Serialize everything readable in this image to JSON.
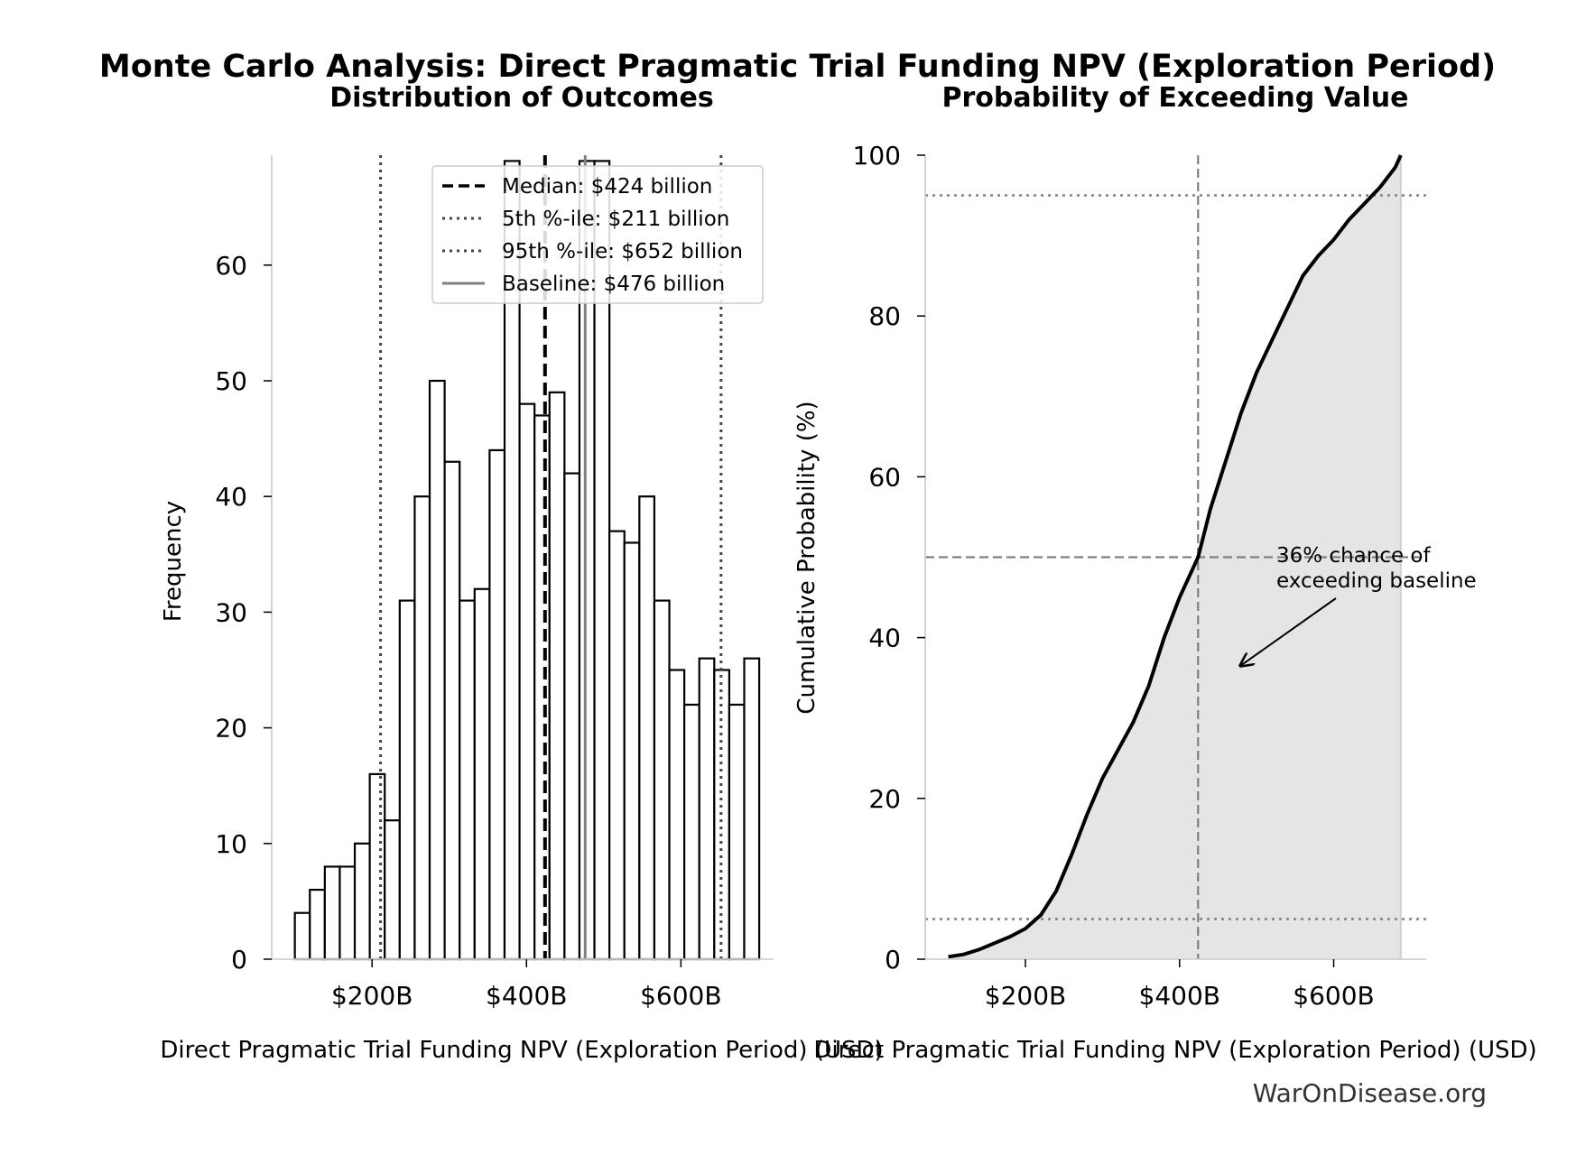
{
  "figure": {
    "title": "Monte Carlo Analysis: Direct Pragmatic Trial Funding NPV (Exploration Period)",
    "watermark": "WarOnDisease.org"
  },
  "chart_data": [
    {
      "type": "bar",
      "title": "Distribution of Outcomes",
      "xlabel": "Direct Pragmatic Trial Funding NPV (Exploration Period) (USD)",
      "ylabel": "Frequency",
      "xlim": [
        70,
        720
      ],
      "ylim": [
        0,
        69.5
      ],
      "x_ticks": [
        200,
        400,
        600
      ],
      "x_tick_labels": [
        "$200B",
        "$400B",
        "$600B"
      ],
      "y_ticks": [
        0,
        10,
        20,
        30,
        40,
        50,
        60
      ],
      "bin_start": 100,
      "bin_width": 19.4,
      "values": [
        4,
        6,
        8,
        8,
        10,
        16,
        12,
        31,
        40,
        50,
        43,
        31,
        32,
        44,
        69,
        48,
        47,
        49,
        42,
        69,
        69,
        37,
        36,
        40,
        31,
        25,
        22,
        26,
        25,
        22,
        26
      ],
      "reference_lines": [
        {
          "label": "Median: $424 billion",
          "x": 424,
          "style": "dashed",
          "color": "#000000"
        },
        {
          "label": "5th %-ile: $211 billion",
          "x": 211,
          "style": "dotted",
          "color": "#444444"
        },
        {
          "label": "95th %-ile: $652 billion",
          "x": 652,
          "style": "dotted",
          "color": "#444444"
        },
        {
          "label": "Baseline: $476 billion",
          "x": 476,
          "style": "solid",
          "color": "#808080"
        }
      ],
      "legend_position": "top-right"
    },
    {
      "type": "area",
      "title": "Probability of Exceeding Value",
      "xlabel": "Direct Pragmatic Trial Funding NPV (Exploration Period) (USD)",
      "ylabel": "Cumulative Probability (%)",
      "xlim": [
        70,
        720
      ],
      "ylim": [
        0,
        100
      ],
      "x_ticks": [
        200,
        400,
        600
      ],
      "x_tick_labels": [
        "$200B",
        "$400B",
        "$600B"
      ],
      "y_ticks": [
        0,
        20,
        40,
        60,
        80,
        100
      ],
      "x": [
        100,
        120,
        140,
        160,
        180,
        200,
        220,
        240,
        260,
        280,
        300,
        320,
        340,
        360,
        380,
        400,
        424,
        440,
        460,
        480,
        500,
        520,
        540,
        560,
        580,
        600,
        620,
        640,
        660,
        680,
        687
      ],
      "y": [
        0.3,
        0.6,
        1.2,
        2.0,
        2.8,
        3.8,
        5.5,
        8.5,
        13,
        18,
        22.5,
        26,
        29.5,
        34,
        40,
        45,
        50,
        56,
        62,
        68,
        73,
        77,
        81,
        85,
        87.5,
        89.5,
        92,
        94,
        96,
        98.5,
        100
      ],
      "hlines": [
        {
          "y": 95,
          "style": "dotted"
        },
        {
          "y": 5,
          "style": "dotted"
        },
        {
          "y": 50,
          "style": "dashed"
        }
      ],
      "vlines": [
        {
          "x": 424,
          "style": "dashed"
        }
      ],
      "annotation": {
        "lines": [
          "36% chance of",
          "exceeding baseline"
        ],
        "arrow_to": [
          476,
          36.5
        ]
      }
    }
  ]
}
